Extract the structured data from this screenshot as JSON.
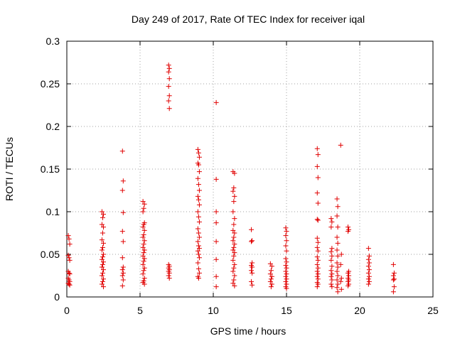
{
  "chart_data": {
    "type": "scatter",
    "title": "Day 249 of 2017, Rate Of TEC Index for receiver iqal",
    "xlabel": "GPS time / hours",
    "ylabel": "ROTI / TECUs",
    "xlim": [
      0,
      25
    ],
    "ylim": [
      0,
      0.3
    ],
    "xticks": [
      0,
      5,
      10,
      15,
      20,
      25
    ],
    "yticks": [
      0,
      0.05,
      0.1,
      0.15,
      0.2,
      0.25,
      0.3
    ],
    "xtick_labels": [
      "0",
      "5",
      "10",
      "15",
      "20",
      "25"
    ],
    "ytick_labels": [
      "0",
      "0.05",
      "0.1",
      "0.15",
      "0.2",
      "0.25",
      "0.3"
    ],
    "grid": true,
    "legend": false,
    "marker": "+",
    "color": "#e00000",
    "points": [
      [
        0.1,
        0.072
      ],
      [
        0.15,
        0.068
      ],
      [
        0.2,
        0.062
      ],
      [
        0.1,
        0.049
      ],
      [
        0.15,
        0.046
      ],
      [
        0.2,
        0.043
      ],
      [
        0.1,
        0.03
      ],
      [
        0.15,
        0.028
      ],
      [
        0.2,
        0.027
      ],
      [
        0.1,
        0.022
      ],
      [
        0.15,
        0.02
      ],
      [
        0.2,
        0.018
      ],
      [
        0.1,
        0.016
      ],
      [
        0.15,
        0.015
      ],
      [
        0.2,
        0.014
      ],
      [
        2.4,
        0.1
      ],
      [
        2.5,
        0.097
      ],
      [
        2.45,
        0.093
      ],
      [
        2.4,
        0.085
      ],
      [
        2.5,
        0.082
      ],
      [
        2.45,
        0.075
      ],
      [
        2.4,
        0.067
      ],
      [
        2.5,
        0.063
      ],
      [
        2.45,
        0.058
      ],
      [
        2.4,
        0.055
      ],
      [
        2.5,
        0.05
      ],
      [
        2.45,
        0.047
      ],
      [
        2.4,
        0.044
      ],
      [
        2.5,
        0.041
      ],
      [
        2.45,
        0.038
      ],
      [
        2.4,
        0.035
      ],
      [
        2.5,
        0.032
      ],
      [
        2.45,
        0.028
      ],
      [
        2.4,
        0.025
      ],
      [
        2.5,
        0.021
      ],
      [
        2.45,
        0.018
      ],
      [
        2.4,
        0.015
      ],
      [
        2.5,
        0.012
      ],
      [
        3.8,
        0.171
      ],
      [
        3.85,
        0.136
      ],
      [
        3.8,
        0.125
      ],
      [
        3.85,
        0.099
      ],
      [
        3.8,
        0.077
      ],
      [
        3.85,
        0.065
      ],
      [
        3.8,
        0.046
      ],
      [
        3.85,
        0.035
      ],
      [
        3.8,
        0.032
      ],
      [
        3.85,
        0.028
      ],
      [
        3.8,
        0.025
      ],
      [
        3.85,
        0.02
      ],
      [
        3.8,
        0.013
      ],
      [
        5.2,
        0.112
      ],
      [
        5.3,
        0.109
      ],
      [
        5.25,
        0.104
      ],
      [
        5.2,
        0.1
      ],
      [
        5.3,
        0.087
      ],
      [
        5.25,
        0.085
      ],
      [
        5.2,
        0.082
      ],
      [
        5.3,
        0.078
      ],
      [
        5.25,
        0.073
      ],
      [
        5.2,
        0.07
      ],
      [
        5.3,
        0.066
      ],
      [
        5.25,
        0.062
      ],
      [
        5.2,
        0.058
      ],
      [
        5.3,
        0.055
      ],
      [
        5.25,
        0.052
      ],
      [
        5.2,
        0.048
      ],
      [
        5.3,
        0.045
      ],
      [
        5.25,
        0.042
      ],
      [
        5.2,
        0.038
      ],
      [
        5.3,
        0.034
      ],
      [
        5.25,
        0.031
      ],
      [
        5.2,
        0.027
      ],
      [
        5.3,
        0.022
      ],
      [
        5.25,
        0.019
      ],
      [
        5.2,
        0.017
      ],
      [
        5.3,
        0.015
      ],
      [
        6.95,
        0.272
      ],
      [
        7.0,
        0.268
      ],
      [
        6.95,
        0.264
      ],
      [
        7.0,
        0.256
      ],
      [
        6.95,
        0.247
      ],
      [
        7.0,
        0.236
      ],
      [
        6.95,
        0.23
      ],
      [
        7.0,
        0.221
      ],
      [
        6.95,
        0.038
      ],
      [
        7.0,
        0.036
      ],
      [
        6.95,
        0.034
      ],
      [
        7.0,
        0.032
      ],
      [
        6.95,
        0.03
      ],
      [
        7.0,
        0.028
      ],
      [
        6.95,
        0.025
      ],
      [
        7.0,
        0.022
      ],
      [
        8.95,
        0.173
      ],
      [
        9.0,
        0.169
      ],
      [
        9.05,
        0.164
      ],
      [
        8.95,
        0.157
      ],
      [
        9.0,
        0.155
      ],
      [
        9.05,
        0.147
      ],
      [
        8.95,
        0.139
      ],
      [
        9.0,
        0.132
      ],
      [
        9.05,
        0.125
      ],
      [
        8.95,
        0.118
      ],
      [
        9.0,
        0.114
      ],
      [
        9.05,
        0.108
      ],
      [
        8.95,
        0.1
      ],
      [
        9.0,
        0.094
      ],
      [
        9.05,
        0.088
      ],
      [
        8.95,
        0.08
      ],
      [
        9.0,
        0.075
      ],
      [
        9.05,
        0.07
      ],
      [
        8.95,
        0.065
      ],
      [
        9.0,
        0.06
      ],
      [
        9.05,
        0.057
      ],
      [
        8.95,
        0.054
      ],
      [
        9.0,
        0.05
      ],
      [
        9.05,
        0.046
      ],
      [
        8.95,
        0.04
      ],
      [
        9.0,
        0.033
      ],
      [
        9.05,
        0.028
      ],
      [
        8.95,
        0.024
      ],
      [
        9.0,
        0.022
      ],
      [
        10.2,
        0.228
      ],
      [
        10.2,
        0.138
      ],
      [
        10.2,
        0.1
      ],
      [
        10.2,
        0.087
      ],
      [
        10.2,
        0.065
      ],
      [
        10.2,
        0.044
      ],
      [
        10.2,
        0.024
      ],
      [
        10.2,
        0.012
      ],
      [
        11.35,
        0.147
      ],
      [
        11.45,
        0.145
      ],
      [
        11.4,
        0.128
      ],
      [
        11.35,
        0.124
      ],
      [
        11.45,
        0.118
      ],
      [
        11.4,
        0.112
      ],
      [
        11.35,
        0.1
      ],
      [
        11.45,
        0.092
      ],
      [
        11.4,
        0.085
      ],
      [
        11.35,
        0.078
      ],
      [
        11.45,
        0.075
      ],
      [
        11.4,
        0.07
      ],
      [
        11.35,
        0.066
      ],
      [
        11.45,
        0.062
      ],
      [
        11.4,
        0.058
      ],
      [
        11.35,
        0.055
      ],
      [
        11.45,
        0.052
      ],
      [
        11.4,
        0.048
      ],
      [
        11.35,
        0.043
      ],
      [
        11.45,
        0.038
      ],
      [
        11.4,
        0.034
      ],
      [
        11.35,
        0.03
      ],
      [
        11.45,
        0.025
      ],
      [
        11.4,
        0.02
      ],
      [
        11.35,
        0.016
      ],
      [
        11.45,
        0.013
      ],
      [
        12.6,
        0.079
      ],
      [
        12.65,
        0.066
      ],
      [
        12.6,
        0.065
      ],
      [
        12.65,
        0.04
      ],
      [
        12.6,
        0.037
      ],
      [
        12.65,
        0.035
      ],
      [
        12.6,
        0.031
      ],
      [
        12.65,
        0.028
      ],
      [
        12.6,
        0.018
      ],
      [
        12.65,
        0.014
      ],
      [
        13.9,
        0.039
      ],
      [
        14.0,
        0.036
      ],
      [
        13.95,
        0.031
      ],
      [
        13.9,
        0.027
      ],
      [
        14.0,
        0.024
      ],
      [
        13.95,
        0.021
      ],
      [
        13.9,
        0.018
      ],
      [
        14.0,
        0.015
      ],
      [
        13.95,
        0.012
      ],
      [
        14.95,
        0.081
      ],
      [
        15.0,
        0.077
      ],
      [
        14.95,
        0.072
      ],
      [
        15.0,
        0.066
      ],
      [
        14.95,
        0.06
      ],
      [
        15.0,
        0.054
      ],
      [
        14.95,
        0.045
      ],
      [
        15.0,
        0.041
      ],
      [
        14.95,
        0.037
      ],
      [
        15.0,
        0.034
      ],
      [
        14.95,
        0.03
      ],
      [
        15.0,
        0.027
      ],
      [
        14.95,
        0.024
      ],
      [
        15.0,
        0.021
      ],
      [
        14.95,
        0.018
      ],
      [
        15.0,
        0.015
      ],
      [
        14.95,
        0.012
      ],
      [
        15.0,
        0.01
      ],
      [
        17.1,
        0.174
      ],
      [
        17.15,
        0.167
      ],
      [
        17.1,
        0.153
      ],
      [
        17.15,
        0.14
      ],
      [
        17.1,
        0.122
      ],
      [
        17.15,
        0.11
      ],
      [
        17.1,
        0.091
      ],
      [
        17.15,
        0.09
      ],
      [
        17.1,
        0.069
      ],
      [
        17.15,
        0.064
      ],
      [
        17.1,
        0.058
      ],
      [
        17.15,
        0.054
      ],
      [
        17.1,
        0.047
      ],
      [
        17.15,
        0.043
      ],
      [
        17.1,
        0.038
      ],
      [
        17.15,
        0.034
      ],
      [
        17.1,
        0.03
      ],
      [
        17.15,
        0.027
      ],
      [
        17.1,
        0.024
      ],
      [
        17.15,
        0.021
      ],
      [
        17.1,
        0.017
      ],
      [
        17.15,
        0.015
      ],
      [
        17.1,
        0.012
      ],
      [
        18.05,
        0.092
      ],
      [
        18.1,
        0.088
      ],
      [
        18.05,
        0.082
      ],
      [
        18.1,
        0.057
      ],
      [
        18.05,
        0.053
      ],
      [
        18.1,
        0.048
      ],
      [
        18.05,
        0.043
      ],
      [
        18.1,
        0.036
      ],
      [
        18.05,
        0.031
      ],
      [
        18.1,
        0.027
      ],
      [
        18.05,
        0.024
      ],
      [
        18.1,
        0.02
      ],
      [
        18.05,
        0.015
      ],
      [
        18.1,
        0.012
      ],
      [
        18.45,
        0.115
      ],
      [
        18.5,
        0.106
      ],
      [
        18.45,
        0.095
      ],
      [
        18.5,
        0.082
      ],
      [
        18.45,
        0.07
      ],
      [
        18.5,
        0.063
      ],
      [
        18.45,
        0.055
      ],
      [
        18.5,
        0.048
      ],
      [
        18.45,
        0.04
      ],
      [
        18.5,
        0.035
      ],
      [
        18.45,
        0.03
      ],
      [
        18.5,
        0.025
      ],
      [
        18.45,
        0.02
      ],
      [
        18.5,
        0.015
      ],
      [
        18.45,
        0.011
      ],
      [
        18.5,
        0.006
      ],
      [
        18.7,
        0.178
      ],
      [
        18.75,
        0.05
      ],
      [
        18.7,
        0.038
      ],
      [
        18.75,
        0.022
      ],
      [
        18.7,
        0.018
      ],
      [
        18.75,
        0.009
      ],
      [
        19.2,
        0.082
      ],
      [
        19.25,
        0.079
      ],
      [
        19.2,
        0.077
      ],
      [
        19.25,
        0.03
      ],
      [
        19.2,
        0.028
      ],
      [
        19.25,
        0.025
      ],
      [
        19.2,
        0.022
      ],
      [
        19.25,
        0.02
      ],
      [
        19.2,
        0.018
      ],
      [
        19.25,
        0.015
      ],
      [
        19.2,
        0.013
      ],
      [
        20.6,
        0.057
      ],
      [
        20.65,
        0.048
      ],
      [
        20.6,
        0.044
      ],
      [
        20.65,
        0.04
      ],
      [
        20.6,
        0.036
      ],
      [
        20.65,
        0.032
      ],
      [
        20.6,
        0.028
      ],
      [
        20.65,
        0.024
      ],
      [
        20.6,
        0.021
      ],
      [
        20.65,
        0.018
      ],
      [
        20.6,
        0.015
      ],
      [
        22.3,
        0.038
      ],
      [
        22.35,
        0.028
      ],
      [
        22.3,
        0.025
      ],
      [
        22.35,
        0.021
      ],
      [
        22.3,
        0.02
      ],
      [
        22.35,
        0.012
      ],
      [
        22.3,
        0.006
      ]
    ]
  }
}
